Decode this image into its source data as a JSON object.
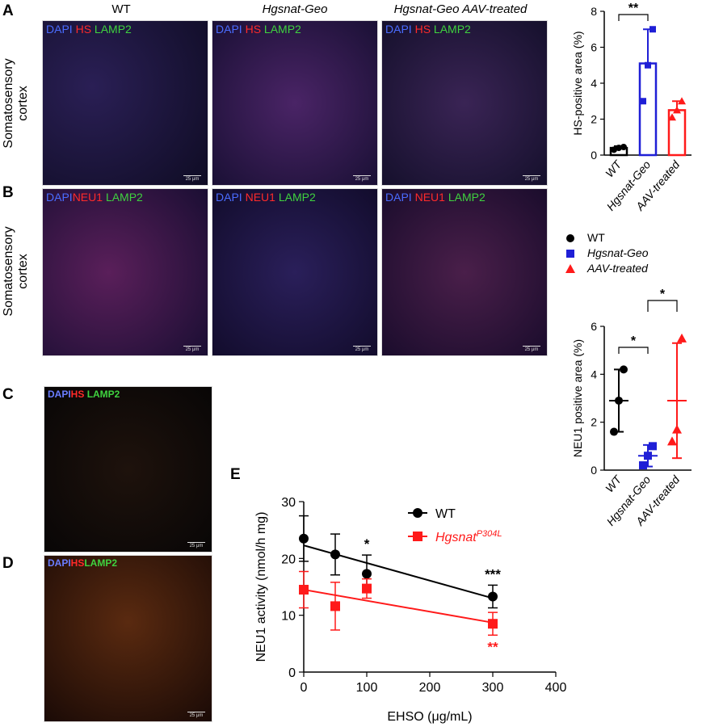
{
  "panels": {
    "a": "A",
    "b": "B",
    "c": "C",
    "d": "D",
    "e": "E"
  },
  "columns": [
    "WT",
    "Hgsnat-Geo",
    "Hgsnat-Geo AAV-treated"
  ],
  "row_label": "Somatosensory\ncortex",
  "row_a_stain": {
    "dapi": "DAPI",
    "hs": "HS",
    "lamp2": "LAMP2"
  },
  "row_b_stain": {
    "dapi": "DAPI",
    "neu1": "NEU1",
    "lamp2": "LAMP2"
  },
  "cells_stain": {
    "dapi": "DAPI",
    "hs": "HS",
    "lamp2": "LAMP2"
  },
  "scale_text": "25 μm",
  "legend": {
    "wt": "WT",
    "geo": "Hgsnat-Geo",
    "aav": "AAV-treated"
  },
  "colors": {
    "wt": "#000000",
    "geo": "#1f1fd6",
    "aav": "#ff1a1a"
  },
  "chart_data": [
    {
      "type": "bar",
      "categories": [
        "WT",
        "Hgsnat-Geo",
        "AAV-treated"
      ],
      "values": [
        0.4,
        5.1,
        2.5
      ],
      "errors": [
        0.1,
        1.9,
        0.5
      ],
      "points": [
        [
          0.3,
          0.4,
          0.45
        ],
        [
          3.0,
          5.0,
          7.0
        ],
        [
          2.1,
          2.5,
          3.0
        ]
      ],
      "ylabel": "HS-positive area (%)",
      "ylim": [
        0,
        8
      ],
      "yticks": [
        0,
        2,
        4,
        6,
        8
      ],
      "annotations": [
        {
          "between": [
            "WT",
            "Hgsnat-Geo"
          ],
          "text": "**"
        }
      ]
    },
    {
      "type": "scatter",
      "categories": [
        "WT",
        "Hgsnat-Geo",
        "AAV-treated"
      ],
      "means": [
        2.9,
        0.6,
        2.9
      ],
      "errors": [
        1.3,
        0.45,
        2.4
      ],
      "points": [
        [
          1.6,
          2.9,
          4.2
        ],
        [
          0.2,
          0.6,
          1.0
        ],
        [
          1.2,
          1.7,
          5.5
        ]
      ],
      "ylabel": "NEU1 positive area  (%)",
      "ylim": [
        0,
        6
      ],
      "yticks": [
        0,
        2,
        4,
        6
      ],
      "annotations": [
        {
          "between": [
            "WT",
            "Hgsnat-Geo"
          ],
          "text": "*"
        },
        {
          "between": [
            "Hgsnat-Geo",
            "AAV-treated"
          ],
          "text": "*"
        }
      ]
    },
    {
      "type": "line",
      "xlabel": "EHSO (μg/mL)",
      "ylabel": "NEU1 activity  (nmol/h mg)",
      "xlim": [
        0,
        400
      ],
      "ylim": [
        0,
        30
      ],
      "xticks": [
        0,
        100,
        200,
        300,
        400
      ],
      "yticks": [
        0,
        10,
        20,
        30
      ],
      "series": [
        {
          "name": "WT",
          "x": [
            0,
            50,
            100,
            300
          ],
          "y": [
            23.5,
            20.7,
            17.3,
            13.3
          ],
          "err": [
            4.0,
            3.6,
            3.3,
            2.0
          ],
          "fit": [
            [
              0,
              22.3
            ],
            [
              300,
              13.0
            ]
          ],
          "sig": [
            {
              "x": 100,
              "text": "*"
            },
            {
              "x": 300,
              "text": "***"
            }
          ]
        },
        {
          "name": "Hgsnat",
          "name_sup": "P304L",
          "x": [
            0,
            50,
            100,
            300
          ],
          "y": [
            14.5,
            11.6,
            14.7,
            8.5
          ],
          "err": [
            3.2,
            4.2,
            1.7,
            2.0
          ],
          "fit": [
            [
              0,
              14.5
            ],
            [
              300,
              8.7
            ]
          ],
          "sig": [
            {
              "x": 300,
              "text": "**"
            }
          ]
        }
      ]
    }
  ]
}
